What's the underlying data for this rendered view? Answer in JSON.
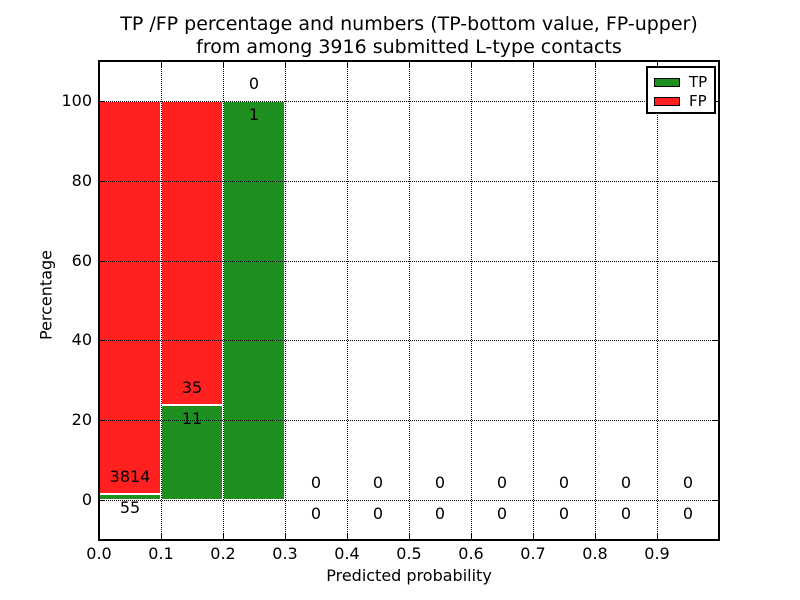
{
  "chart_data": {
    "type": "bar",
    "stacked": true,
    "title": "TP /FP percentage and numbers (TP-bottom value, FP-upper) from among 3916 submitted L-type contacts",
    "title_lines": [
      "TP /FP percentage and numbers (TP-bottom value, FP-upper)",
      "from among 3916 submitted L-type contacts"
    ],
    "total_contacts": 3916,
    "xlabel": "Predicted probability",
    "ylabel": "Percentage",
    "xlim": [
      0.0,
      1.0
    ],
    "ylim": [
      -10,
      110
    ],
    "x_ticks": [
      0.0,
      0.1,
      0.2,
      0.3,
      0.4,
      0.5,
      0.6,
      0.7,
      0.8,
      0.9
    ],
    "x_tick_labels": [
      "0.0",
      "0.1",
      "0.2",
      "0.3",
      "0.4",
      "0.5",
      "0.6",
      "0.7",
      "0.8",
      "0.9"
    ],
    "y_ticks": [
      0,
      20,
      40,
      60,
      80,
      100
    ],
    "y_tick_labels": [
      "0",
      "20",
      "40",
      "60",
      "80",
      "100"
    ],
    "grid": true,
    "grid_style": "dotted",
    "legend": {
      "position": "upper right",
      "entries": [
        {
          "label": "TP",
          "color": "#1f8f1f"
        },
        {
          "label": "FP",
          "color": "#ff2020"
        }
      ]
    },
    "bins": [
      {
        "range": [
          0.0,
          0.1
        ],
        "tp_count": 55,
        "fp_count": 3814,
        "tp_pct": 1.42,
        "fp_pct": 98.58
      },
      {
        "range": [
          0.1,
          0.2
        ],
        "tp_count": 11,
        "fp_count": 35,
        "tp_pct": 23.91,
        "fp_pct": 76.09
      },
      {
        "range": [
          0.2,
          0.3
        ],
        "tp_count": 1,
        "fp_count": 0,
        "tp_pct": 100,
        "fp_pct": 0
      },
      {
        "range": [
          0.3,
          0.4
        ],
        "tp_count": 0,
        "fp_count": 0,
        "tp_pct": 0,
        "fp_pct": 0
      },
      {
        "range": [
          0.4,
          0.5
        ],
        "tp_count": 0,
        "fp_count": 0,
        "tp_pct": 0,
        "fp_pct": 0
      },
      {
        "range": [
          0.5,
          0.6
        ],
        "tp_count": 0,
        "fp_count": 0,
        "tp_pct": 0,
        "fp_pct": 0
      },
      {
        "range": [
          0.6,
          0.7
        ],
        "tp_count": 0,
        "fp_count": 0,
        "tp_pct": 0,
        "fp_pct": 0
      },
      {
        "range": [
          0.7,
          0.8
        ],
        "tp_count": 0,
        "fp_count": 0,
        "tp_pct": 0,
        "fp_pct": 0
      },
      {
        "range": [
          0.8,
          0.9
        ],
        "tp_count": 0,
        "fp_count": 0,
        "tp_pct": 0,
        "fp_pct": 0
      },
      {
        "range": [
          0.9,
          1.0
        ],
        "tp_count": 0,
        "fp_count": 0,
        "tp_pct": 0,
        "fp_pct": 0
      }
    ],
    "colors": {
      "tp": "#1f8f1f",
      "fp": "#ff2020",
      "bar_edge": "#ffffff",
      "axes": "#000000",
      "background": "#ffffff"
    }
  }
}
